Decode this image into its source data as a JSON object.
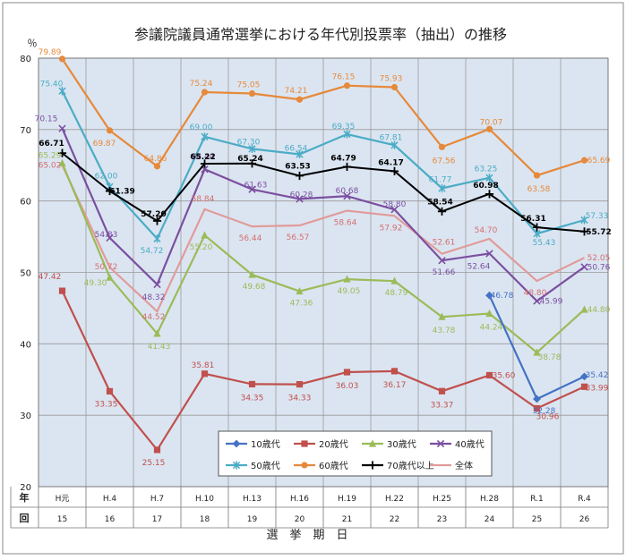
{
  "chart_data": {
    "type": "line",
    "title": "参議院議員通常選挙における年代別投票率（抽出）の推移",
    "ylabel": "％",
    "xlabel": "選　挙　期　日",
    "ylim": [
      20,
      80
    ],
    "yticks": [
      20,
      30,
      40,
      50,
      60,
      70,
      80
    ],
    "row_headers": [
      "年",
      "回"
    ],
    "categories": [
      "H元",
      "H.4",
      "H.7",
      "H.10",
      "H.13",
      "H.16",
      "H.19",
      "H.22",
      "H.25",
      "H.28",
      "R.1",
      "R.4"
    ],
    "sessions": [
      "15",
      "16",
      "17",
      "18",
      "19",
      "20",
      "21",
      "22",
      "23",
      "24",
      "25",
      "26"
    ],
    "grid": true,
    "legend_position": "bottom-center",
    "series": [
      {
        "name": "10歳代",
        "color": "#4472C4",
        "marker": "diamond",
        "values": [
          null,
          null,
          null,
          null,
          null,
          null,
          null,
          null,
          null,
          46.78,
          32.28,
          35.42
        ]
      },
      {
        "name": "20歳代",
        "color": "#C0504D",
        "marker": "square",
        "values": [
          47.42,
          33.35,
          25.15,
          35.81,
          34.35,
          34.33,
          36.03,
          36.17,
          33.37,
          35.6,
          30.96,
          33.99
        ]
      },
      {
        "name": "30歳代",
        "color": "#9BBB59",
        "marker": "triangle",
        "values": [
          65.29,
          49.3,
          41.43,
          55.2,
          49.68,
          47.36,
          49.05,
          48.79,
          43.78,
          44.24,
          38.78,
          44.8
        ]
      },
      {
        "name": "40歳代",
        "color": "#7B4FA0",
        "marker": "x",
        "values": [
          70.15,
          54.83,
          48.32,
          64.44,
          61.63,
          60.28,
          60.68,
          58.8,
          51.66,
          52.64,
          45.99,
          50.76
        ]
      },
      {
        "name": "50歳代",
        "color": "#4BACC6",
        "marker": "star",
        "values": [
          75.4,
          62.0,
          54.72,
          69.0,
          67.3,
          66.54,
          69.35,
          67.81,
          61.77,
          63.25,
          55.43,
          57.33
        ]
      },
      {
        "name": "60歳代",
        "color": "#E6893A",
        "marker": "circle",
        "values": [
          79.89,
          69.87,
          64.86,
          75.24,
          75.05,
          74.21,
          76.15,
          75.93,
          67.56,
          70.07,
          63.58,
          65.69
        ]
      },
      {
        "name": "70歳代以上",
        "color": "#000000",
        "marker": "plus",
        "values": [
          66.71,
          61.39,
          57.2,
          65.22,
          65.24,
          63.53,
          64.79,
          64.17,
          58.54,
          60.98,
          56.31,
          55.72
        ]
      },
      {
        "name": "全体",
        "color": "#E19B9B",
        "marker": "none",
        "values": [
          65.02,
          50.72,
          44.52,
          58.84,
          56.44,
          56.57,
          58.64,
          57.92,
          52.61,
          54.7,
          48.8,
          52.05
        ]
      }
    ],
    "labels": {
      "10歳代": [
        "",
        "",
        "",
        "",
        "",
        "",
        "",
        "",
        "",
        "46.78",
        "32.28",
        "35.42"
      ],
      "20歳代": [
        "47.42",
        "33.35",
        "25.15",
        "35.81",
        "34.35",
        "34.33",
        "36.03",
        "36.17",
        "33.37",
        "35.60",
        "30.96",
        "33.99"
      ],
      "30歳代": [
        "",
        "49.30",
        "41.43",
        "55.20",
        "49.68",
        "47.36",
        "49.05",
        "48.79",
        "43.78",
        "44.24",
        "38.78",
        "44.80"
      ],
      "40歳代": [
        "70.15",
        "54.83",
        "48.32",
        "64.44",
        "61.63",
        "60.28",
        "60.68",
        "58.80",
        "51.66",
        "52.64",
        "45.99",
        "50.76"
      ],
      "50歳代": [
        "75.40",
        "62.00",
        "54.72",
        "69.00",
        "67.30",
        "66.54",
        "69.35",
        "67.81",
        "61.77",
        "63.25",
        "55.43",
        "57.33"
      ],
      "60歳代": [
        "79.89",
        "69.87",
        "64.86",
        "75.24",
        "75.05",
        "74.21",
        "76.15",
        "75.93",
        "67.56",
        "70.07",
        "63.58",
        "65.69"
      ],
      "70歳代以上": [
        "66.71",
        "61.39",
        "57.20",
        "65.22",
        "65.24",
        "63.53",
        "64.79",
        "64.17",
        "58.54",
        "60.98",
        "56.31",
        "55.72"
      ],
      "全体": [
        "65.02",
        "50.72",
        "44.52",
        "58.84",
        "56.44",
        "56.57",
        "58.64",
        "57.92",
        "52.61",
        "54.70",
        "48.80",
        "52.05"
      ],
      "30歳代_first": "65.29"
    }
  }
}
